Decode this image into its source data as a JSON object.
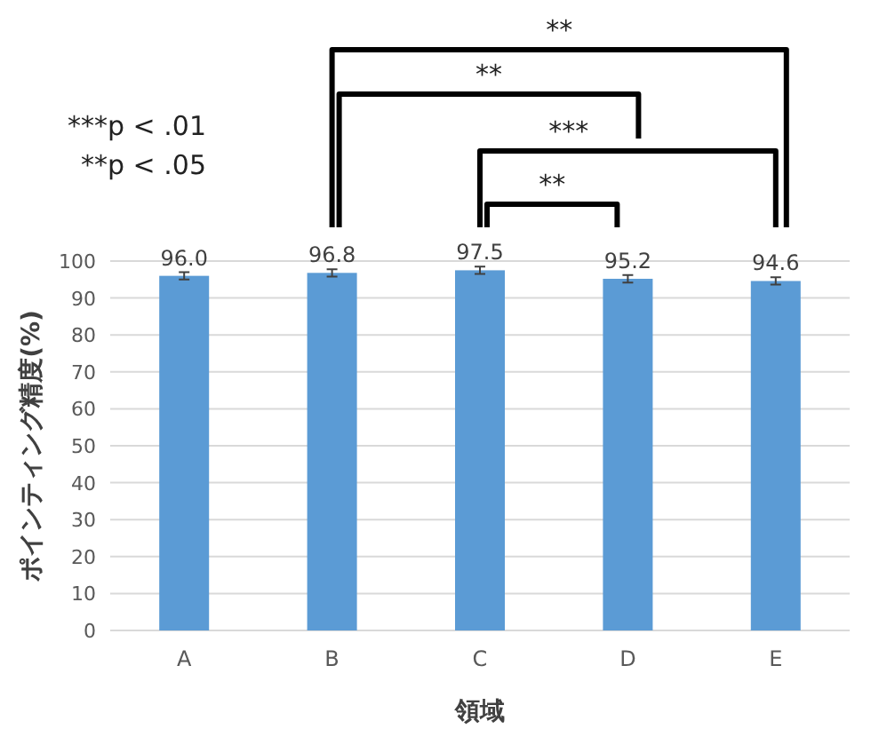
{
  "chart_data": {
    "type": "bar",
    "xlabel": "領域",
    "ylabel": "ポインティング精度(%)",
    "categories": [
      "A",
      "B",
      "C",
      "D",
      "E"
    ],
    "values": [
      96.0,
      96.8,
      97.5,
      95.2,
      94.6
    ],
    "errors": [
      1,
      1,
      1,
      1,
      1
    ],
    "color": "#5b9bd5",
    "value_labels": [
      "96.0",
      "96.8",
      "97.5",
      "95.2",
      "94.6"
    ],
    "ylim": [
      0,
      100
    ],
    "yticks": [
      0,
      10,
      20,
      30,
      40,
      50,
      60,
      70,
      80,
      90,
      100
    ],
    "grid": "y",
    "annotations": [
      "***p < .01",
      "**p < .05",
      "**",
      "**",
      "***",
      "**"
    ]
  }
}
